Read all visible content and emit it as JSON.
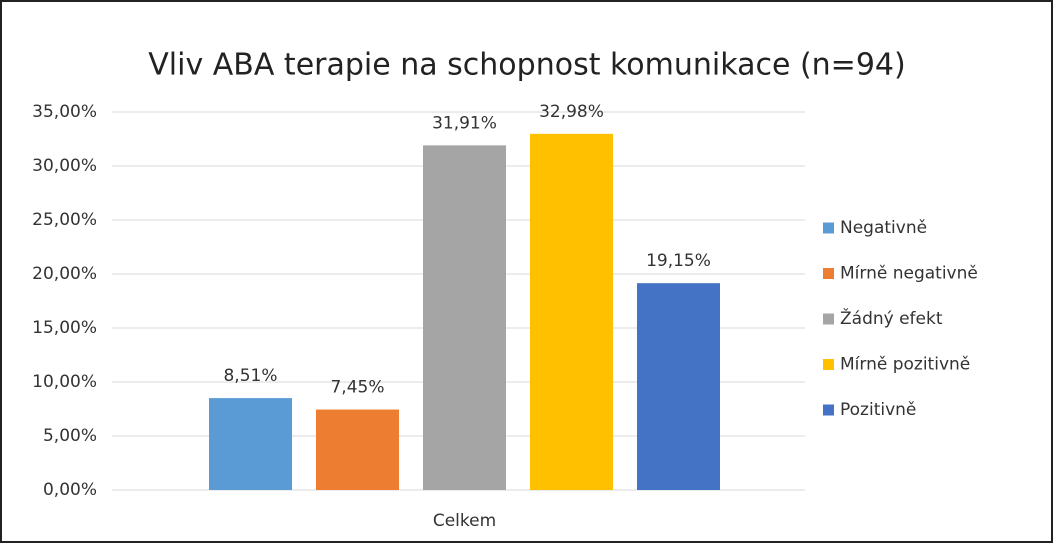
{
  "chart_data": {
    "type": "bar",
    "title": "Vliv ABA terapie na schopnost komunikace (n=94)",
    "categories": [
      "Celkem"
    ],
    "series": [
      {
        "name": "Negativně",
        "color": "#5b9bd5",
        "values": [
          8.51
        ],
        "value_labels": [
          "8,51%"
        ]
      },
      {
        "name": "Mírně negativně",
        "color": "#ed7d31",
        "values": [
          7.45
        ],
        "value_labels": [
          "7,45%"
        ]
      },
      {
        "name": "Žádný efekt",
        "color": "#a5a5a5",
        "values": [
          31.91
        ],
        "value_labels": [
          "31,91%"
        ]
      },
      {
        "name": "Mírně pozitivně",
        "color": "#ffc000",
        "values": [
          32.98
        ],
        "value_labels": [
          "32,98%"
        ]
      },
      {
        "name": "Pozitivně",
        "color": "#4472c4",
        "values": [
          19.15
        ],
        "value_labels": [
          "19,15%"
        ]
      }
    ],
    "ylim": [
      0,
      35
    ],
    "yticks": [
      {
        "value": 0,
        "label": "0,00%"
      },
      {
        "value": 5,
        "label": "5,00%"
      },
      {
        "value": 10,
        "label": "10,00%"
      },
      {
        "value": 15,
        "label": "15,00%"
      },
      {
        "value": 20,
        "label": "20,00%"
      },
      {
        "value": 25,
        "label": "25,00%"
      },
      {
        "value": 30,
        "label": "30,00%"
      },
      {
        "value": 35,
        "label": "35,00%"
      }
    ],
    "grid": true,
    "legend": "right"
  }
}
